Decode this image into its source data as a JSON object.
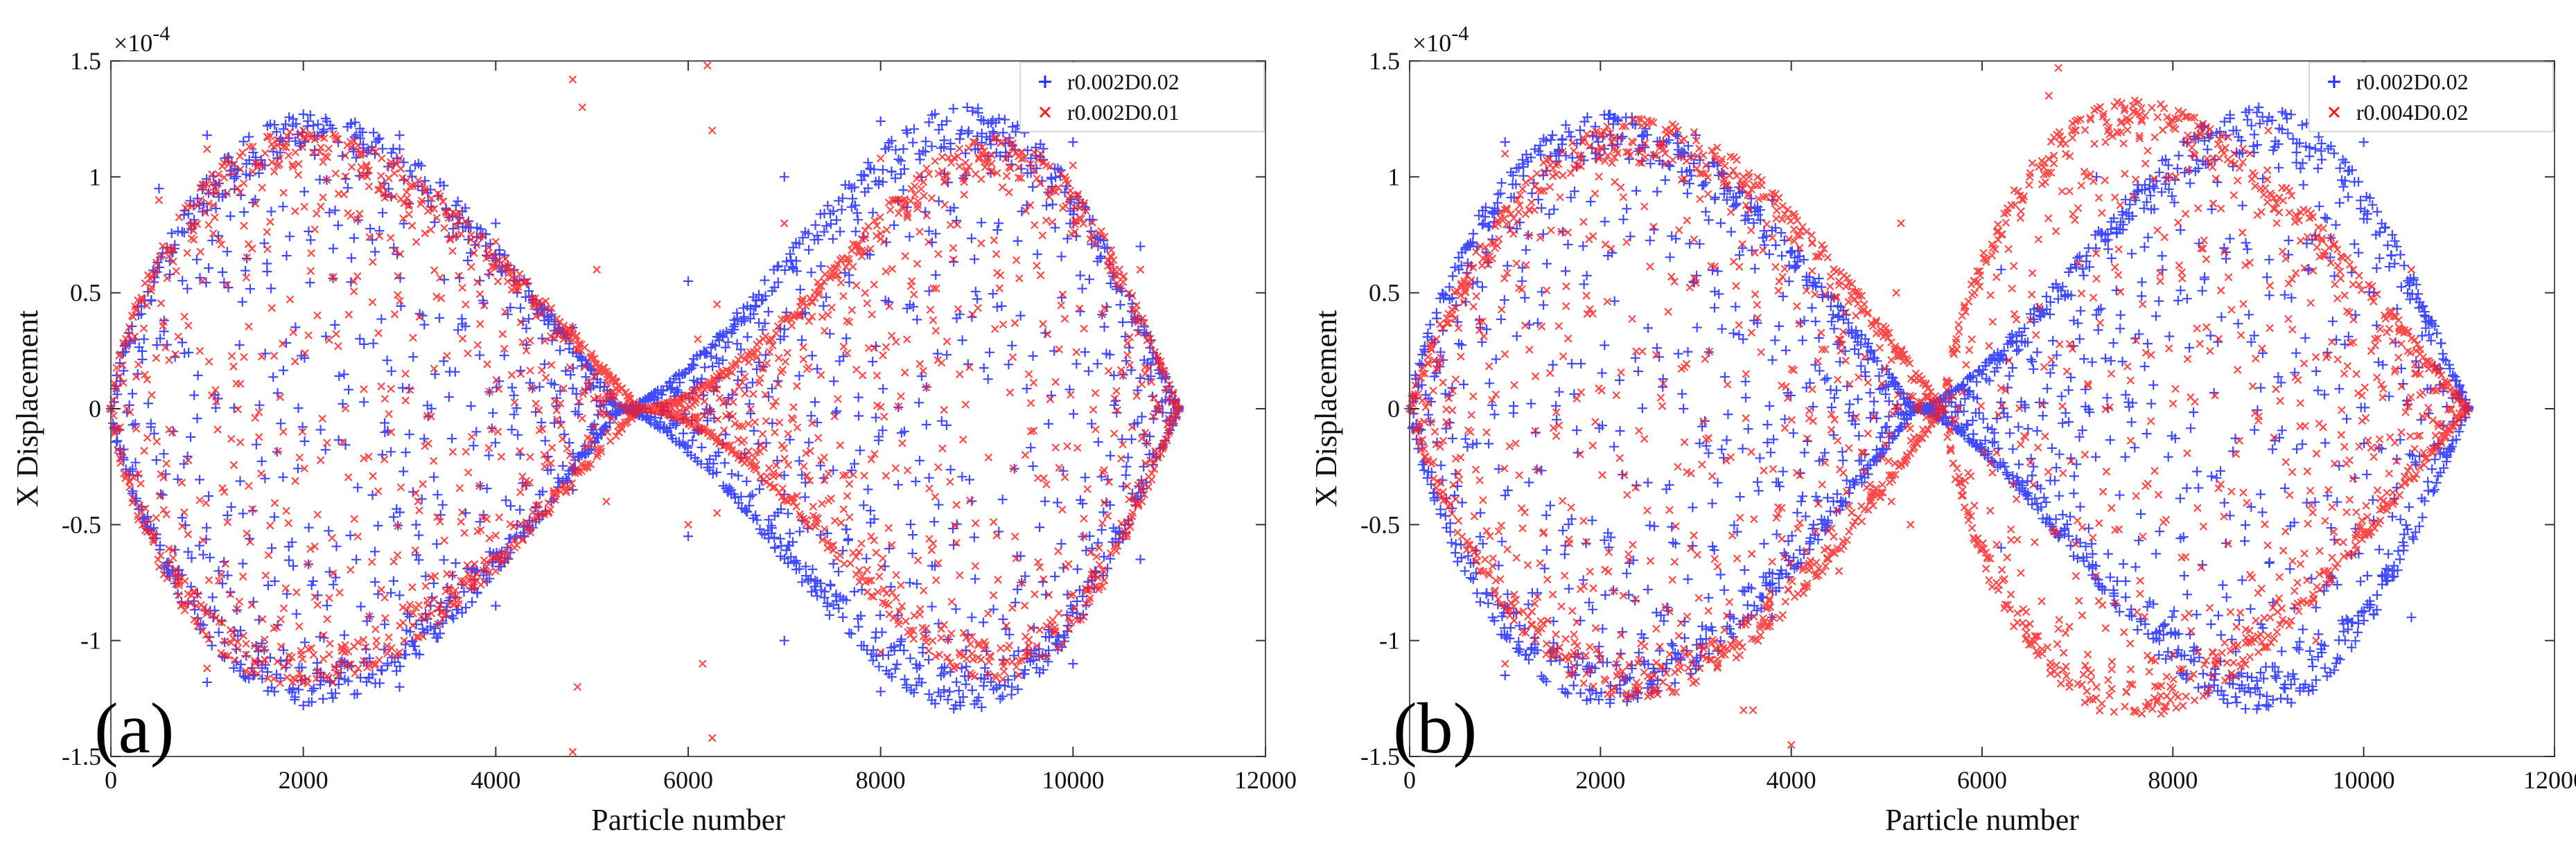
{
  "chart_data": [
    {
      "type": "scatter",
      "panel_label": "(a)",
      "xlabel": "Particle number",
      "ylabel": "X Displacement",
      "y_exponent": "×10",
      "y_exponent_power": "-4",
      "xlim": [
        0,
        12000
      ],
      "ylim": [
        -1.5,
        1.5
      ],
      "xticks": [
        0,
        2000,
        4000,
        6000,
        8000,
        10000,
        12000
      ],
      "xtick_labels": [
        "0",
        "2000",
        "4000",
        "6000",
        "8000",
        "10000",
        "12000"
      ],
      "yticks": [
        -1.5,
        -1,
        -0.5,
        0,
        0.5,
        1,
        1.5
      ],
      "ytick_labels": [
        "-1.5",
        "-1",
        "-0.5",
        "0",
        "0.5",
        "1",
        "1.5"
      ],
      "grid": false,
      "legend_position": "top-right",
      "series": [
        {
          "name": "r0.002D0.02",
          "color": "#1f2bff",
          "marker": "plus",
          "lobes": [
            {
              "x_start": 0,
              "x_end": 5300,
              "x_peak": 2100,
              "amplitude": 1.27,
              "cross_at": 5300
            },
            {
              "x_start": 5300,
              "x_end": 11100,
              "x_peak": 8900,
              "amplitude": 1.3,
              "cross_at": 5300
            }
          ],
          "points": [
            [
              0,
              0
            ],
            [
              500,
              0.95
            ],
            [
              1000,
              1.18
            ],
            [
              2000,
              1.27
            ],
            [
              3000,
              1.18
            ],
            [
              4000,
              0.8
            ],
            [
              4800,
              0.35
            ],
            [
              5300,
              0
            ],
            [
              6000,
              0.55
            ],
            [
              7000,
              1.0
            ],
            [
              8000,
              1.24
            ],
            [
              8900,
              1.3
            ],
            [
              10000,
              1.15
            ],
            [
              10700,
              0.7
            ],
            [
              11100,
              0
            ],
            [
              1000,
              -1.18
            ],
            [
              2000,
              -1.28
            ],
            [
              3000,
              -1.2
            ],
            [
              4000,
              -0.85
            ],
            [
              4800,
              -0.35
            ],
            [
              6000,
              -0.55
            ],
            [
              7000,
              -1.0
            ],
            [
              8000,
              -1.22
            ],
            [
              9000,
              -1.26
            ],
            [
              10000,
              -1.1
            ],
            [
              10700,
              -0.65
            ]
          ]
        },
        {
          "name": "r0.002D0.01",
          "color": "#ff1a1a",
          "marker": "x",
          "lobes": [
            {
              "x_start": 0,
              "x_end": 5500,
              "x_peak": 2000,
              "amplitude": 1.2,
              "cross_at": 5500
            },
            {
              "x_start": 5500,
              "x_end": 11100,
              "x_peak": 9200,
              "amplitude": 1.17,
              "cross_at": 5500
            }
          ],
          "outliers": [
            [
              4800,
              1.42
            ],
            [
              4900,
              1.3
            ],
            [
              4850,
              -1.2
            ],
            [
              4800,
              -1.48
            ],
            [
              5050,
              0.6
            ],
            [
              5150,
              -0.4
            ],
            [
              6200,
              1.48
            ],
            [
              6250,
              1.2
            ],
            [
              6150,
              -1.1
            ],
            [
              6250,
              -1.42
            ],
            [
              6100,
              0.3
            ],
            [
              6000,
              -0.5
            ]
          ],
          "points": [
            [
              0,
              0
            ],
            [
              500,
              0.9
            ],
            [
              1000,
              1.12
            ],
            [
              2000,
              1.2
            ],
            [
              3000,
              1.08
            ],
            [
              4000,
              0.72
            ],
            [
              4800,
              0.35
            ],
            [
              5500,
              0
            ],
            [
              6300,
              0.45
            ],
            [
              7000,
              0.8
            ],
            [
              8000,
              1.08
            ],
            [
              9200,
              1.17
            ],
            [
              10000,
              1.05
            ],
            [
              10700,
              0.6
            ],
            [
              11100,
              0
            ],
            [
              1000,
              -1.12
            ],
            [
              2000,
              -1.18
            ],
            [
              3000,
              -1.05
            ],
            [
              4000,
              -0.7
            ],
            [
              6300,
              -0.45
            ],
            [
              8000,
              -1.05
            ],
            [
              9200,
              -1.16
            ]
          ]
        }
      ]
    },
    {
      "type": "scatter",
      "panel_label": "(b)",
      "xlabel": "Particle number",
      "ylabel": "X Displacement",
      "y_exponent": "×10",
      "y_exponent_power": "-4",
      "xlim": [
        0,
        12000
      ],
      "ylim": [
        -1.5,
        1.5
      ],
      "xticks": [
        0,
        2000,
        4000,
        6000,
        8000,
        10000,
        12000
      ],
      "xtick_labels": [
        "0",
        "2000",
        "4000",
        "6000",
        "8000",
        "10000",
        "12000"
      ],
      "yticks": [
        -1.5,
        -1,
        -0.5,
        0,
        0.5,
        1,
        1.5
      ],
      "ytick_labels": [
        "-1.5",
        "-1",
        "-0.5",
        "0",
        "0.5",
        "1",
        "1.5"
      ],
      "grid": false,
      "legend_position": "top-right",
      "series": [
        {
          "name": "r0.002D0.02",
          "color": "#1f2bff",
          "marker": "plus",
          "lobes": [
            {
              "x_start": 0,
              "x_end": 5300,
              "x_peak": 2100,
              "amplitude": 1.27,
              "cross_at": 5300
            },
            {
              "x_start": 5300,
              "x_end": 11100,
              "x_peak": 8900,
              "amplitude": 1.3,
              "cross_at": 5300
            }
          ],
          "points": [
            [
              0,
              0
            ],
            [
              1000,
              1.15
            ],
            [
              2100,
              1.27
            ],
            [
              3000,
              1.18
            ],
            [
              3800,
              0.9
            ],
            [
              4500,
              0.4
            ],
            [
              5300,
              0
            ],
            [
              6200,
              0.6
            ],
            [
              7200,
              1.0
            ],
            [
              8900,
              1.3
            ],
            [
              10000,
              1.15
            ],
            [
              11100,
              0
            ],
            [
              1000,
              -1.15
            ],
            [
              2100,
              -1.27
            ],
            [
              3800,
              -0.9
            ],
            [
              6200,
              -0.6
            ],
            [
              8900,
              -1.28
            ],
            [
              10500,
              -0.9
            ]
          ]
        },
        {
          "name": "r0.004D0.02",
          "color": "#ff1a1a",
          "marker": "x",
          "lobes": [
            {
              "x_start": 0,
              "x_end": 5600,
              "x_peak": 2400,
              "amplitude": 1.25,
              "cross_at": 5600
            },
            {
              "x_start": 5600,
              "x_end": 11100,
              "x_peak": 7600,
              "amplitude": 1.33,
              "cross_at": 5600
            }
          ],
          "outliers": [
            [
              4000,
              -1.45
            ],
            [
              3600,
              -1.3
            ],
            [
              5150,
              0.8
            ],
            [
              5100,
              0.5
            ],
            [
              5250,
              -0.5
            ],
            [
              5050,
              -0.4
            ],
            [
              6800,
              1.47
            ],
            [
              6700,
              1.35
            ],
            [
              4500,
              0.3
            ],
            [
              3900,
              0.1
            ]
          ],
          "points": [
            [
              0,
              0
            ],
            [
              1000,
              1.1
            ],
            [
              2400,
              1.25
            ],
            [
              3500,
              1.0
            ],
            [
              4500,
              0.55
            ],
            [
              5600,
              0
            ],
            [
              6500,
              1.0
            ],
            [
              7600,
              1.33
            ],
            [
              9000,
              1.2
            ],
            [
              10500,
              0.6
            ],
            [
              11100,
              0
            ],
            [
              1000,
              -1.1
            ],
            [
              2400,
              -1.22
            ],
            [
              3500,
              -1.3
            ],
            [
              4500,
              -0.7
            ],
            [
              6800,
              -0.95
            ],
            [
              7600,
              -1.3
            ],
            [
              9500,
              -1.0
            ]
          ]
        }
      ]
    }
  ]
}
